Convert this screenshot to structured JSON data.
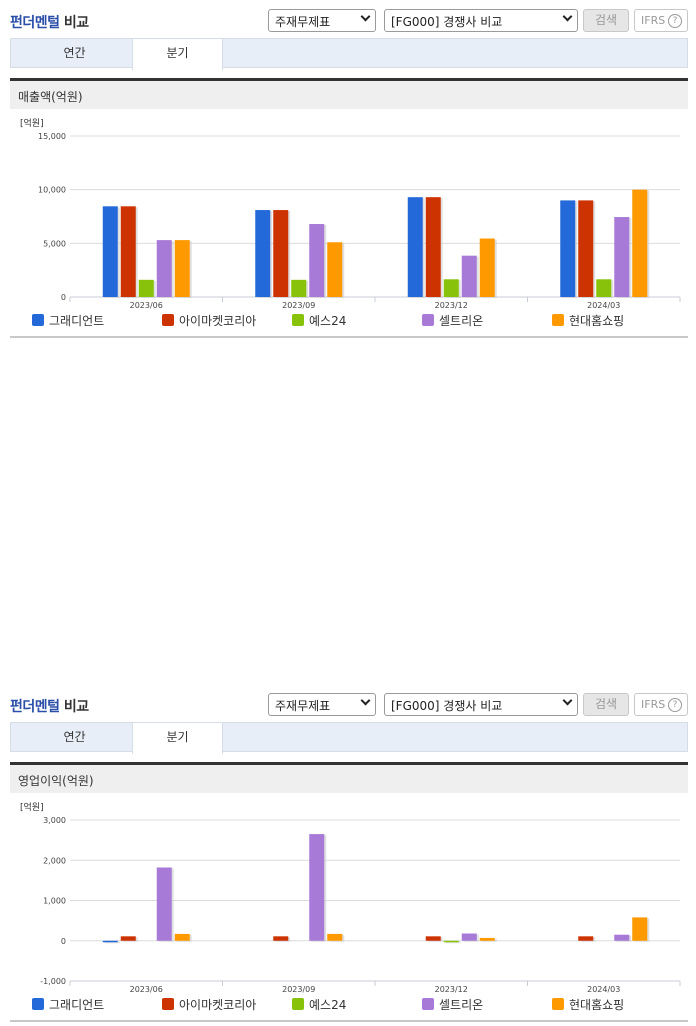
{
  "panels": [
    {
      "title_part1": "펀더멘털",
      "title_part2": "비교",
      "select1": "주재무제표",
      "select2": "[FG000] 경쟁사 비교",
      "search_label": "검색",
      "ifrs_label": "IFRS",
      "help_glyph": "?",
      "tabs": [
        {
          "label": "연간"
        },
        {
          "label": "분기",
          "active": true
        }
      ],
      "subtitle": "매출액(억원)"
    },
    {
      "title_part1": "펀더멘털",
      "title_part2": "비교",
      "select1": "주재무제표",
      "select2": "[FG000] 경쟁사 비교",
      "search_label": "검색",
      "ifrs_label": "IFRS",
      "help_glyph": "?",
      "tabs": [
        {
          "label": "연간"
        },
        {
          "label": "분기",
          "active": true
        }
      ],
      "subtitle": "영업이익(억원)"
    }
  ],
  "legend": [
    {
      "name": "그래디언트",
      "color": "#2469d9"
    },
    {
      "name": "아이마켓코리아",
      "color": "#cc3300"
    },
    {
      "name": "예스24",
      "color": "#88c20a"
    },
    {
      "name": "셀트리온",
      "color": "#a87ad8"
    },
    {
      "name": "현대홈쇼핑",
      "color": "#ff9900"
    }
  ],
  "chart_data": [
    {
      "type": "bar",
      "title": "매출액(억원)",
      "ylabel": "[억원]",
      "xlabel": "",
      "categories": [
        "2023/06",
        "2023/09",
        "2023/12",
        "2024/03"
      ],
      "yticks": [
        "0",
        "5,000",
        "10,000",
        "15,000"
      ],
      "ylim": [
        0,
        15000
      ],
      "grid": true,
      "legend_position": "bottom",
      "series": [
        {
          "name": "그래디언트",
          "values": [
            8450,
            8100,
            9300,
            9000
          ]
        },
        {
          "name": "아이마켓코리아",
          "values": [
            8450,
            8100,
            9300,
            9000
          ]
        },
        {
          "name": "예스24",
          "values": [
            1600,
            1600,
            1650,
            1650
          ]
        },
        {
          "name": "셀트리온",
          "values": [
            5300,
            6800,
            3850,
            7450
          ]
        },
        {
          "name": "현대홈쇼핑",
          "values": [
            5300,
            5100,
            5450,
            10000
          ]
        }
      ]
    },
    {
      "type": "bar",
      "title": "영업이익(억원)",
      "ylabel": "[억원]",
      "xlabel": "",
      "categories": [
        "2023/06",
        "2023/09",
        "2023/12",
        "2024/03"
      ],
      "yticks": [
        "-1,000",
        "0",
        "1,000",
        "2,000",
        "3,000"
      ],
      "ylim": [
        -1000,
        3000
      ],
      "grid": true,
      "legend_position": "bottom",
      "series": [
        {
          "name": "그래디언트",
          "values": [
            -20,
            null,
            null,
            null
          ]
        },
        {
          "name": "아이마켓코리아",
          "values": [
            110,
            110,
            110,
            110
          ]
        },
        {
          "name": "예스24",
          "values": [
            null,
            null,
            -20,
            null
          ]
        },
        {
          "name": "셀트리온",
          "values": [
            1820,
            2650,
            180,
            150
          ]
        },
        {
          "name": "현대홈쇼핑",
          "values": [
            170,
            170,
            70,
            580
          ]
        }
      ]
    }
  ]
}
